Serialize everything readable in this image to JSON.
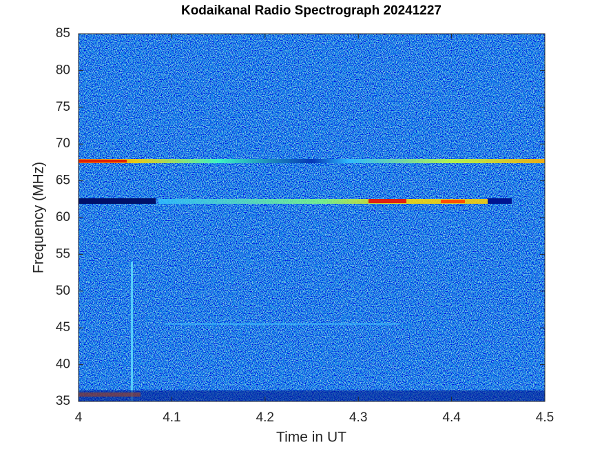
{
  "chart_data": {
    "type": "heatmap",
    "title": "Kodaikanal Radio Spectrograph  20241227",
    "x_label": "Time in UT",
    "y_label": "Frequency (MHz)",
    "xlim": [
      4,
      4.5
    ],
    "xticks": [
      4,
      4.1,
      4.2,
      4.3,
      4.4,
      4.5
    ],
    "ylim": [
      35,
      85
    ],
    "yticks": [
      35,
      40,
      45,
      50,
      55,
      60,
      65,
      70,
      75,
      80,
      85
    ],
    "colormap": "jet"
  }
}
